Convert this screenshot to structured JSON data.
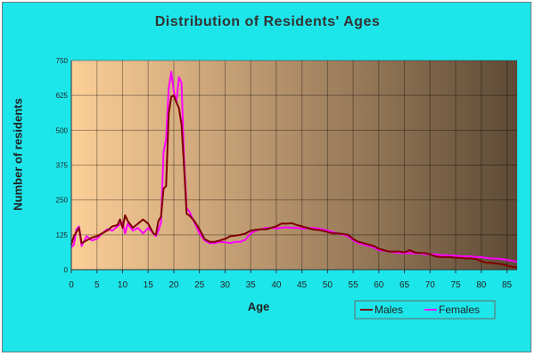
{
  "chart_data": {
    "type": "line",
    "title": "Distribution of Residents' Ages",
    "xlabel": "Age",
    "ylabel": "Number of residents",
    "xlim": [
      0,
      87
    ],
    "ylim": [
      0,
      750
    ],
    "x_ticks": [
      0,
      5,
      10,
      15,
      20,
      25,
      30,
      35,
      40,
      45,
      50,
      55,
      60,
      65,
      70,
      75,
      80,
      85
    ],
    "y_ticks": [
      0,
      125,
      250,
      375,
      500,
      625,
      750
    ],
    "grid": true,
    "legend_position": "bottom-right",
    "background_gradient": [
      "#fdcf98",
      "#5e4a36"
    ],
    "series": [
      {
        "name": "Males",
        "color": "#800000",
        "points": [
          [
            0,
            90
          ],
          [
            0.5,
            120
          ],
          [
            1,
            135
          ],
          [
            1.5,
            150
          ],
          [
            2,
            95
          ],
          [
            3,
            105
          ],
          [
            4,
            115
          ],
          [
            5,
            120
          ],
          [
            6,
            130
          ],
          [
            7,
            140
          ],
          [
            8,
            155
          ],
          [
            9,
            160
          ],
          [
            9.5,
            180
          ],
          [
            10,
            150
          ],
          [
            10.5,
            195
          ],
          [
            11,
            175
          ],
          [
            12,
            150
          ],
          [
            13,
            165
          ],
          [
            14,
            180
          ],
          [
            15,
            165
          ],
          [
            16,
            130
          ],
          [
            16.5,
            125
          ],
          [
            17,
            175
          ],
          [
            17.5,
            190
          ],
          [
            18,
            290
          ],
          [
            18.5,
            300
          ],
          [
            19,
            560
          ],
          [
            19.5,
            620
          ],
          [
            20,
            625
          ],
          [
            20.5,
            600
          ],
          [
            21,
            580
          ],
          [
            21.5,
            520
          ],
          [
            22,
            370
          ],
          [
            22.5,
            200
          ],
          [
            23,
            195
          ],
          [
            24,
            175
          ],
          [
            25,
            145
          ],
          [
            26,
            110
          ],
          [
            27,
            100
          ],
          [
            28,
            100
          ],
          [
            29,
            105
          ],
          [
            30,
            110
          ],
          [
            31,
            120
          ],
          [
            32,
            122
          ],
          [
            33,
            125
          ],
          [
            34,
            130
          ],
          [
            35,
            140
          ],
          [
            36,
            143
          ],
          [
            37,
            145
          ],
          [
            38,
            145
          ],
          [
            39,
            150
          ],
          [
            40,
            155
          ],
          [
            41,
            165
          ],
          [
            42,
            165
          ],
          [
            43,
            167
          ],
          [
            44,
            160
          ],
          [
            45,
            155
          ],
          [
            46,
            150
          ],
          [
            47,
            145
          ],
          [
            48,
            143
          ],
          [
            49,
            140
          ],
          [
            50,
            135
          ],
          [
            51,
            130
          ],
          [
            52,
            130
          ],
          [
            53,
            128
          ],
          [
            54,
            125
          ],
          [
            55,
            110
          ],
          [
            56,
            100
          ],
          [
            57,
            95
          ],
          [
            58,
            90
          ],
          [
            59,
            85
          ],
          [
            60,
            75
          ],
          [
            61,
            70
          ],
          [
            62,
            65
          ],
          [
            63,
            65
          ],
          [
            64,
            65
          ],
          [
            65,
            62
          ],
          [
            66,
            70
          ],
          [
            67,
            62
          ],
          [
            68,
            60
          ],
          [
            69,
            60
          ],
          [
            70,
            55
          ],
          [
            71,
            48
          ],
          [
            72,
            45
          ],
          [
            73,
            45
          ],
          [
            74,
            45
          ],
          [
            75,
            42
          ],
          [
            76,
            42
          ],
          [
            77,
            40
          ],
          [
            78,
            40
          ],
          [
            79,
            38
          ],
          [
            80,
            30
          ],
          [
            81,
            25
          ],
          [
            82,
            25
          ],
          [
            83,
            22
          ],
          [
            84,
            20
          ],
          [
            85,
            15
          ],
          [
            86,
            10
          ],
          [
            87,
            8
          ]
        ]
      },
      {
        "name": "Females",
        "color": "#ff00ff",
        "points": [
          [
            0,
            80
          ],
          [
            0.5,
            90
          ],
          [
            1,
            145
          ],
          [
            1.5,
            155
          ],
          [
            2,
            85
          ],
          [
            3,
            120
          ],
          [
            4,
            105
          ],
          [
            5,
            110
          ],
          [
            6,
            130
          ],
          [
            7,
            145
          ],
          [
            8,
            140
          ],
          [
            9,
            155
          ],
          [
            10,
            170
          ],
          [
            10.5,
            130
          ],
          [
            11,
            165
          ],
          [
            12,
            140
          ],
          [
            13,
            150
          ],
          [
            14,
            130
          ],
          [
            15,
            150
          ],
          [
            16,
            130
          ],
          [
            16.5,
            120
          ],
          [
            17,
            140
          ],
          [
            17.5,
            170
          ],
          [
            18,
            420
          ],
          [
            18.5,
            470
          ],
          [
            19,
            650
          ],
          [
            19.5,
            710
          ],
          [
            20,
            640
          ],
          [
            20.5,
            600
          ],
          [
            21,
            690
          ],
          [
            21.5,
            670
          ],
          [
            22,
            400
          ],
          [
            22.5,
            220
          ],
          [
            23,
            210
          ],
          [
            24,
            170
          ],
          [
            25,
            130
          ],
          [
            26,
            105
          ],
          [
            27,
            95
          ],
          [
            28,
            95
          ],
          [
            29,
            100
          ],
          [
            30,
            98
          ],
          [
            31,
            95
          ],
          [
            32,
            100
          ],
          [
            33,
            100
          ],
          [
            34,
            108
          ],
          [
            35,
            130
          ],
          [
            36,
            140
          ],
          [
            37,
            145
          ],
          [
            38,
            150
          ],
          [
            39,
            150
          ],
          [
            40,
            148
          ],
          [
            41,
            150
          ],
          [
            42,
            152
          ],
          [
            43,
            150
          ],
          [
            44,
            150
          ],
          [
            45,
            147
          ],
          [
            46,
            148
          ],
          [
            47,
            150
          ],
          [
            48,
            148
          ],
          [
            49,
            145
          ],
          [
            50,
            140
          ],
          [
            51,
            135
          ],
          [
            52,
            130
          ],
          [
            53,
            125
          ],
          [
            54,
            120
          ],
          [
            55,
            105
          ],
          [
            56,
            95
          ],
          [
            57,
            90
          ],
          [
            58,
            85
          ],
          [
            59,
            80
          ],
          [
            60,
            70
          ],
          [
            61,
            68
          ],
          [
            62,
            65
          ],
          [
            63,
            62
          ],
          [
            64,
            60
          ],
          [
            65,
            58
          ],
          [
            66,
            60
          ],
          [
            67,
            58
          ],
          [
            68,
            58
          ],
          [
            69,
            55
          ],
          [
            70,
            55
          ],
          [
            71,
            55
          ],
          [
            72,
            52
          ],
          [
            73,
            52
          ],
          [
            74,
            50
          ],
          [
            75,
            50
          ],
          [
            76,
            48
          ],
          [
            77,
            48
          ],
          [
            78,
            48
          ],
          [
            79,
            45
          ],
          [
            80,
            45
          ],
          [
            81,
            42
          ],
          [
            82,
            40
          ],
          [
            83,
            40
          ],
          [
            84,
            38
          ],
          [
            85,
            35
          ],
          [
            86,
            32
          ],
          [
            87,
            28
          ]
        ]
      }
    ]
  }
}
